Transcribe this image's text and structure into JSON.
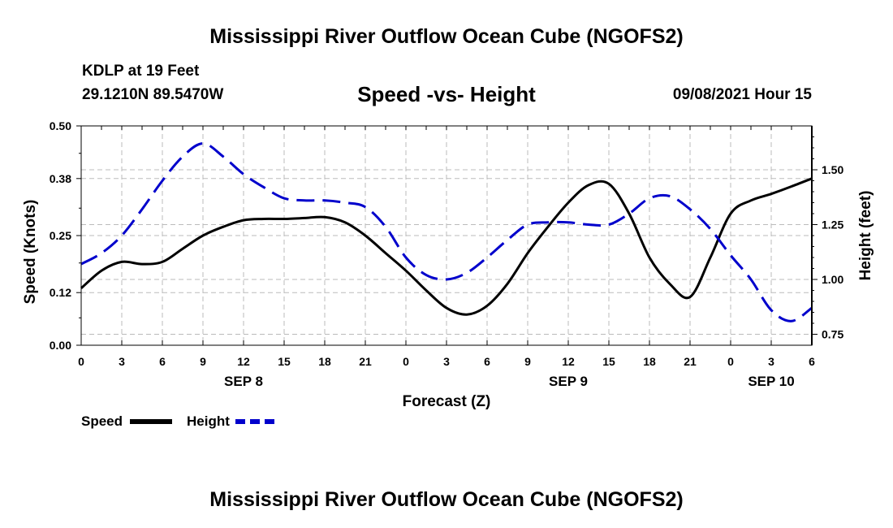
{
  "header": {
    "title": "Mississippi River Outflow Ocean Cube (NGOFS2)",
    "station": "KDLP at 19 Feet",
    "coordinates": "29.1210N  89.5470W",
    "subtitle": "Speed -vs- Height",
    "datetime": "09/08/2021 Hour 15"
  },
  "footer": {
    "title": "Mississippi River Outflow Ocean Cube (NGOFS2)"
  },
  "legend": {
    "speed_label": "Speed",
    "height_label": "Height"
  },
  "colors": {
    "speed": "#000000",
    "height": "#0000cc",
    "grid": "#bbbbbb"
  },
  "chart_data": {
    "type": "line",
    "title": "Speed -vs- Height",
    "xlabel": "Forecast (Z)",
    "ylabel": "Speed (Knots)",
    "y2label": "Height (feet)",
    "xlim": [
      0,
      54
    ],
    "ylim": [
      0,
      0.5
    ],
    "y2lim": [
      0.7,
      1.7
    ],
    "x_ticks": [
      0,
      3,
      6,
      9,
      12,
      15,
      18,
      21,
      24,
      27,
      30,
      33,
      36,
      39,
      42,
      45,
      48,
      51,
      54
    ],
    "x_tick_labels": [
      "0",
      "3",
      "6",
      "9",
      "12",
      "15",
      "18",
      "21",
      "0",
      "3",
      "6",
      "9",
      "12",
      "15",
      "18",
      "21",
      "0",
      "3",
      "6"
    ],
    "date_labels": [
      {
        "x": 12,
        "label": "SEP 8"
      },
      {
        "x": 36,
        "label": "SEP 9"
      },
      {
        "x": 51,
        "label": "SEP 10"
      }
    ],
    "y_ticks": [
      0.0,
      0.12,
      0.25,
      0.38,
      0.5
    ],
    "y_tick_labels": [
      "0.00",
      "0.12",
      "0.25",
      "0.38",
      "0.50"
    ],
    "y2_ticks": [
      0.75,
      1.0,
      1.25,
      1.5
    ],
    "y2_tick_labels": [
      "0.75",
      "1.00",
      "1.25",
      "1.50"
    ],
    "grid": true,
    "series": [
      {
        "name": "Speed",
        "axis": "left",
        "style": "solid",
        "x": [
          0,
          1.5,
          3,
          4.5,
          6,
          7.5,
          9,
          10.5,
          12,
          13.5,
          15,
          16.5,
          18,
          19.5,
          21,
          22.5,
          24,
          25.5,
          27,
          28.5,
          30,
          31.5,
          33,
          34.5,
          36,
          37.5,
          39,
          40.5,
          42,
          43.5,
          45,
          46.5,
          48,
          49.5,
          51,
          52.5,
          54
        ],
        "values": [
          0.13,
          0.17,
          0.19,
          0.185,
          0.19,
          0.22,
          0.25,
          0.27,
          0.285,
          0.288,
          0.288,
          0.29,
          0.292,
          0.28,
          0.25,
          0.21,
          0.17,
          0.125,
          0.085,
          0.07,
          0.09,
          0.14,
          0.21,
          0.27,
          0.325,
          0.365,
          0.368,
          0.3,
          0.2,
          0.14,
          0.11,
          0.2,
          0.3,
          0.33,
          0.345,
          0.362,
          0.38
        ]
      },
      {
        "name": "Height",
        "axis": "right",
        "style": "dashed",
        "x": [
          0,
          1.5,
          3,
          4.5,
          6,
          7.5,
          9,
          10.5,
          12,
          13.5,
          15,
          16.5,
          18,
          19.5,
          21,
          22.5,
          24,
          25.5,
          27,
          28.5,
          30,
          31.5,
          33,
          34.5,
          36,
          37.5,
          39,
          40.5,
          42,
          43.5,
          45,
          46.5,
          48,
          49.5,
          51,
          52.5,
          54
        ],
        "values": [
          1.07,
          1.12,
          1.2,
          1.32,
          1.45,
          1.56,
          1.62,
          1.56,
          1.48,
          1.42,
          1.37,
          1.36,
          1.36,
          1.35,
          1.33,
          1.24,
          1.1,
          1.02,
          1.0,
          1.03,
          1.1,
          1.18,
          1.25,
          1.26,
          1.26,
          1.25,
          1.25,
          1.3,
          1.37,
          1.38,
          1.32,
          1.23,
          1.11,
          1.0,
          0.86,
          0.81,
          0.87
        ]
      }
    ]
  }
}
